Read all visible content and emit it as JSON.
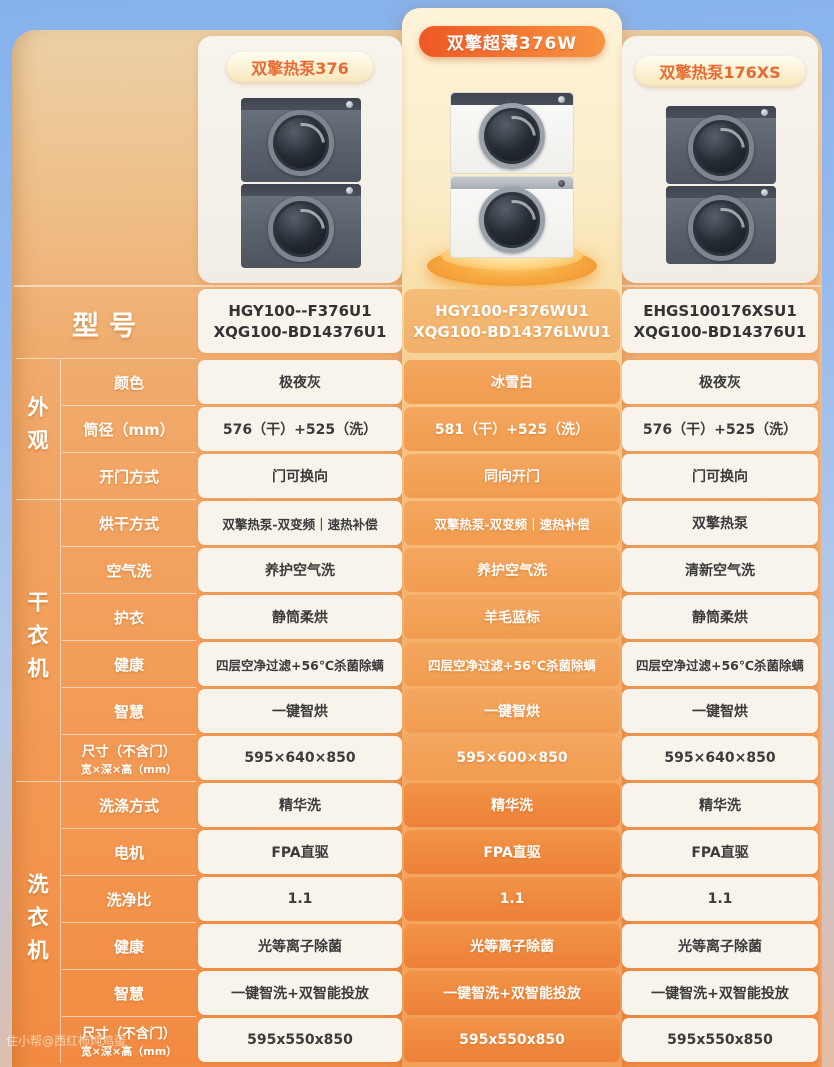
{
  "products": [
    {
      "badge": "双擎热泵376",
      "model_line1": "HGY100--F376U1",
      "model_line2": "XQG100-BD14376U1"
    },
    {
      "badge": "双擎超薄376W",
      "model_line1": "HGY100-F376WU1",
      "model_line2": "XQG100-BD14376LWU1"
    },
    {
      "badge": "双擎热泵176XS",
      "model_line1": "EHGS100176XSU1",
      "model_line2": "XQG100-BD14376U1"
    }
  ],
  "model_row_label": "型号",
  "sections": [
    {
      "label": "外观"
    },
    {
      "label": "干衣机"
    },
    {
      "label": "洗衣机"
    }
  ],
  "rows": [
    {
      "label": "颜色",
      "values": [
        "极夜灰",
        "冰雪白",
        "极夜灰"
      ]
    },
    {
      "label": "筒径（mm）",
      "values": [
        "576（干）+525（洗）",
        "581（干）+525（洗）",
        "576（干）+525（洗）"
      ]
    },
    {
      "label": "开门方式",
      "values": [
        "门可换向",
        "同向开门",
        "门可换向"
      ]
    },
    {
      "label": "烘干方式",
      "values": [
        "双擎热泵-双变频｜速热补偿",
        "双擎热泵-双变频｜速热补偿",
        "双擎热泵"
      ]
    },
    {
      "label": "空气洗",
      "values": [
        "养护空气洗",
        "养护空气洗",
        "清新空气洗"
      ]
    },
    {
      "label": "护衣",
      "values": [
        "静筒柔烘",
        "羊毛蓝标",
        "静筒柔烘"
      ]
    },
    {
      "label": "健康",
      "values": [
        "四层空净过滤+56℃杀菌除螨",
        "四层空净过滤+56℃杀菌除螨",
        "四层空净过滤+56℃杀菌除螨"
      ]
    },
    {
      "label": "智慧",
      "values": [
        "一键智烘",
        "一键智烘",
        "一键智烘"
      ]
    },
    {
      "label": "尺寸（不含门）",
      "label2": "宽×深×高（mm）",
      "values": [
        "595×640×850",
        "595×600×850",
        "595×640×850"
      ]
    },
    {
      "label": "洗涤方式",
      "values": [
        "精华洗",
        "精华洗",
        "精华洗"
      ]
    },
    {
      "label": "电机",
      "values": [
        "FPA直驱",
        "FPA直驱",
        "FPA直驱"
      ]
    },
    {
      "label": "洗净比",
      "values": [
        "1.1",
        "1.1",
        "1.1"
      ]
    },
    {
      "label": "健康",
      "values": [
        "光等离子除菌",
        "光等离子除菌",
        "光等离子除菌"
      ]
    },
    {
      "label": "智慧",
      "values": [
        "一键智洗+双智能投放",
        "一键智洗+双智能投放",
        "一键智洗+双智能投放"
      ]
    },
    {
      "label": "尺寸（不含门）",
      "label2": "宽×深×高（mm）",
      "values": [
        "595x550x850",
        "595x550x850",
        "595x550x850"
      ]
    }
  ],
  "watermark": "住小帮@西红柿炖鸡蛋",
  "colors": {
    "sky": "#86b1ec",
    "panel_orange": "#f2a462",
    "mid_card_cream": "#fdf3d9",
    "mid_cell_orange": "#f09a4e",
    "side_cell_bg": "#f8f4ec",
    "badge_highlight": "#ee5826",
    "badge_side_text": "#e96a30",
    "value_text": "#3b3b3b"
  }
}
